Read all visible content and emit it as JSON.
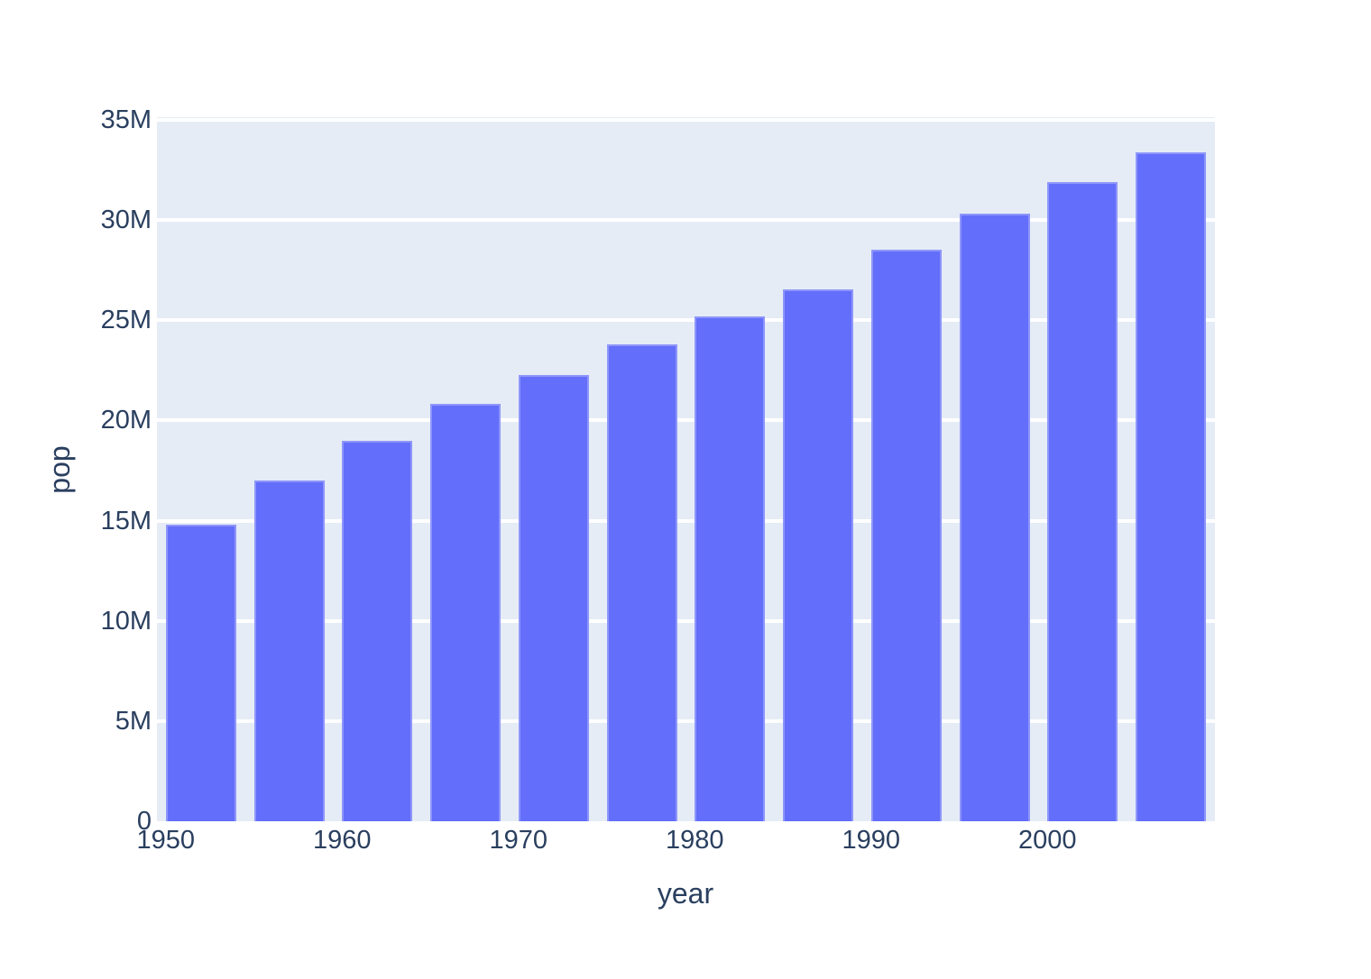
{
  "chart_data": {
    "type": "bar",
    "title": "",
    "xlabel": "year",
    "ylabel": "pop",
    "x": [
      1952,
      1957,
      1962,
      1967,
      1972,
      1977,
      1982,
      1987,
      1992,
      1997,
      2002,
      2007
    ],
    "values": [
      14785584,
      17010154,
      18985849,
      20819767,
      22284500,
      23796400,
      25201900,
      26549700,
      28523502,
      30305843,
      31902268,
      33390141
    ],
    "series_name": "pop",
    "xlim": [
      1949.5,
      2009.5
    ],
    "ylim": [
      0,
      35000000
    ],
    "bar_width_years": 4,
    "grid": true,
    "legend": "none",
    "xticks": [
      {
        "value": 1950,
        "label": "1950"
      },
      {
        "value": 1960,
        "label": "1960"
      },
      {
        "value": 1970,
        "label": "1970"
      },
      {
        "value": 1980,
        "label": "1980"
      },
      {
        "value": 1990,
        "label": "1990"
      },
      {
        "value": 2000,
        "label": "2000"
      }
    ],
    "yticks": [
      {
        "value": 0,
        "label": "0"
      },
      {
        "value": 5000000,
        "label": "5M"
      },
      {
        "value": 10000000,
        "label": "10M"
      },
      {
        "value": 15000000,
        "label": "15M"
      },
      {
        "value": 20000000,
        "label": "20M"
      },
      {
        "value": 25000000,
        "label": "25M"
      },
      {
        "value": 30000000,
        "label": "30M"
      },
      {
        "value": 35000000,
        "label": "35M"
      }
    ],
    "colors": {
      "bar": "#636EFA",
      "plot_background": "#E5ECF6",
      "gridline": "#FFFFFF",
      "text": "#2A3F5F",
      "page_background": "#FFFFFF"
    }
  }
}
